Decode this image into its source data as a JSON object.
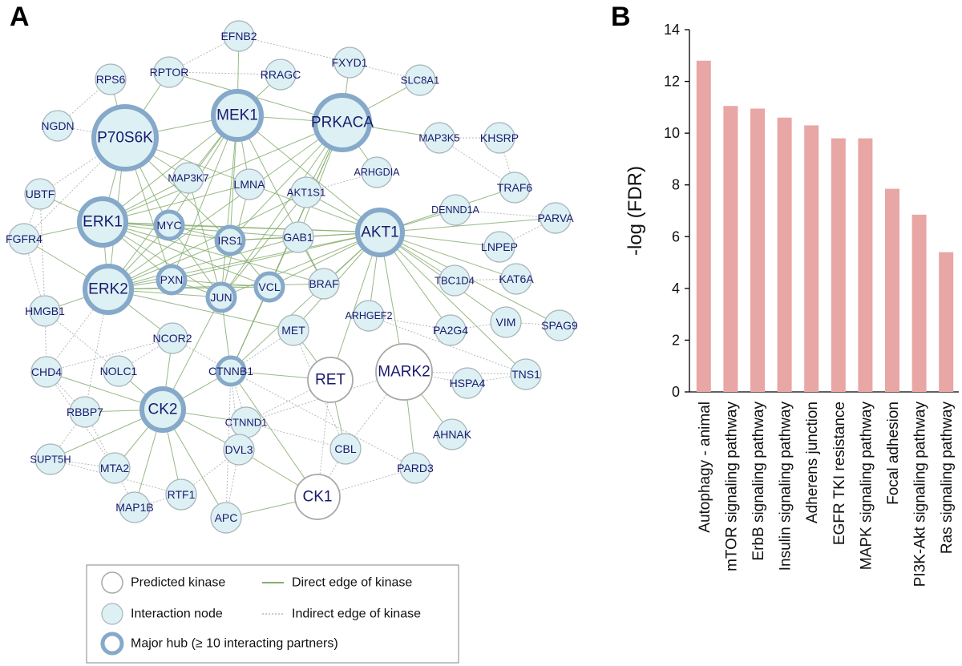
{
  "panels": {
    "a_label": "A",
    "b_label": "B"
  },
  "colors": {
    "hub_stroke": "#86a9c9",
    "interaction_fill": "#ddf0f4",
    "interaction_stroke": "#a8b4ba",
    "kinase_stroke": "#a8a8a8",
    "direct_edge": "#86ad6e",
    "indirect_edge": "#b9b9b9",
    "bar": "#e8a6a5",
    "node_text": "#1a1a6e"
  },
  "network": {
    "nodes": [
      {
        "id": "EFNB2",
        "type": "interaction"
      },
      {
        "id": "RPS6",
        "type": "interaction"
      },
      {
        "id": "RPTOR",
        "type": "interaction"
      },
      {
        "id": "RRAGC",
        "type": "interaction"
      },
      {
        "id": "FXYD1",
        "type": "interaction"
      },
      {
        "id": "SLC8A1",
        "type": "interaction"
      },
      {
        "id": "NGDN",
        "type": "interaction"
      },
      {
        "id": "P70S6K",
        "type": "hub"
      },
      {
        "id": "MEK1",
        "type": "hub"
      },
      {
        "id": "PRKACA",
        "type": "hub"
      },
      {
        "id": "MAP3K5",
        "type": "interaction"
      },
      {
        "id": "KHSRP",
        "type": "interaction"
      },
      {
        "id": "MAP3K7",
        "type": "interaction"
      },
      {
        "id": "LMNA",
        "type": "interaction"
      },
      {
        "id": "ARHGDIA",
        "type": "interaction"
      },
      {
        "id": "AKT1S1",
        "type": "interaction"
      },
      {
        "id": "UBTF",
        "type": "interaction"
      },
      {
        "id": "TRAF6",
        "type": "interaction"
      },
      {
        "id": "ERK1",
        "type": "hub"
      },
      {
        "id": "MYC",
        "type": "hubsmall"
      },
      {
        "id": "DENND1A",
        "type": "interaction"
      },
      {
        "id": "PARVA",
        "type": "interaction"
      },
      {
        "id": "IRS1",
        "type": "hubsmall"
      },
      {
        "id": "GAB1",
        "type": "interaction"
      },
      {
        "id": "AKT1",
        "type": "hub"
      },
      {
        "id": "FGFR4",
        "type": "interaction"
      },
      {
        "id": "LNPEP",
        "type": "interaction"
      },
      {
        "id": "ERK2",
        "type": "hub"
      },
      {
        "id": "PXN",
        "type": "hubsmall"
      },
      {
        "id": "BRAF",
        "type": "interaction"
      },
      {
        "id": "TBC1D4",
        "type": "interaction"
      },
      {
        "id": "KAT6A",
        "type": "interaction"
      },
      {
        "id": "JUN",
        "type": "hubsmall"
      },
      {
        "id": "VCL",
        "type": "hubsmall"
      },
      {
        "id": "HMGB1",
        "type": "interaction"
      },
      {
        "id": "ARHGEF2",
        "type": "interaction"
      },
      {
        "id": "MET",
        "type": "interaction"
      },
      {
        "id": "NCOR2",
        "type": "interaction"
      },
      {
        "id": "PA2G4",
        "type": "interaction"
      },
      {
        "id": "VIM",
        "type": "interaction"
      },
      {
        "id": "SPAG9",
        "type": "interaction"
      },
      {
        "id": "CHD4",
        "type": "interaction"
      },
      {
        "id": "NOLC1",
        "type": "interaction"
      },
      {
        "id": "CTNNB1",
        "type": "hubsmall"
      },
      {
        "id": "RET",
        "type": "kinase"
      },
      {
        "id": "MARK2",
        "type": "kinase"
      },
      {
        "id": "TNS1",
        "type": "interaction"
      },
      {
        "id": "HSPA4",
        "type": "interaction"
      },
      {
        "id": "RBBP7",
        "type": "interaction"
      },
      {
        "id": "CK2",
        "type": "hub"
      },
      {
        "id": "CTNND1",
        "type": "interaction"
      },
      {
        "id": "AHNAK",
        "type": "interaction"
      },
      {
        "id": "CBL",
        "type": "interaction"
      },
      {
        "id": "SUPT5H",
        "type": "interaction"
      },
      {
        "id": "MTA2",
        "type": "interaction"
      },
      {
        "id": "DVL3",
        "type": "interaction"
      },
      {
        "id": "PARD3",
        "type": "interaction"
      },
      {
        "id": "RTF1",
        "type": "interaction"
      },
      {
        "id": "CK1",
        "type": "kinase"
      },
      {
        "id": "MAP1B",
        "type": "interaction"
      },
      {
        "id": "APC",
        "type": "interaction"
      }
    ]
  },
  "legend": {
    "predicted_kinase": "Predicted kinase",
    "interaction_node": "Interaction node",
    "major_hub": "Major hub (≥ 10 interacting partners)",
    "direct_edge": "Direct edge of kinase",
    "indirect_edge": "Indirect edge of kinase"
  },
  "chart_data": {
    "type": "bar",
    "categories": [
      "Autophagy - animal",
      "mTOR signaling pathway",
      "ErbB signaling pathway",
      "Insulin signaling pathway",
      "Adherens junction",
      "EGFR TKI resistance",
      "MAPK signaling pathway",
      "Focal adhesion",
      "PI3K-Akt signaling pathway",
      "Ras signaling pathway"
    ],
    "values": [
      12.8,
      11.05,
      10.95,
      10.6,
      10.3,
      9.8,
      9.8,
      7.85,
      6.85,
      5.4
    ],
    "ylabel": "-log (FDR)",
    "xlabel": "",
    "title": "",
    "ylim": [
      0,
      14
    ],
    "yticks": [
      0,
      2,
      4,
      6,
      8,
      10,
      12,
      14
    ]
  }
}
